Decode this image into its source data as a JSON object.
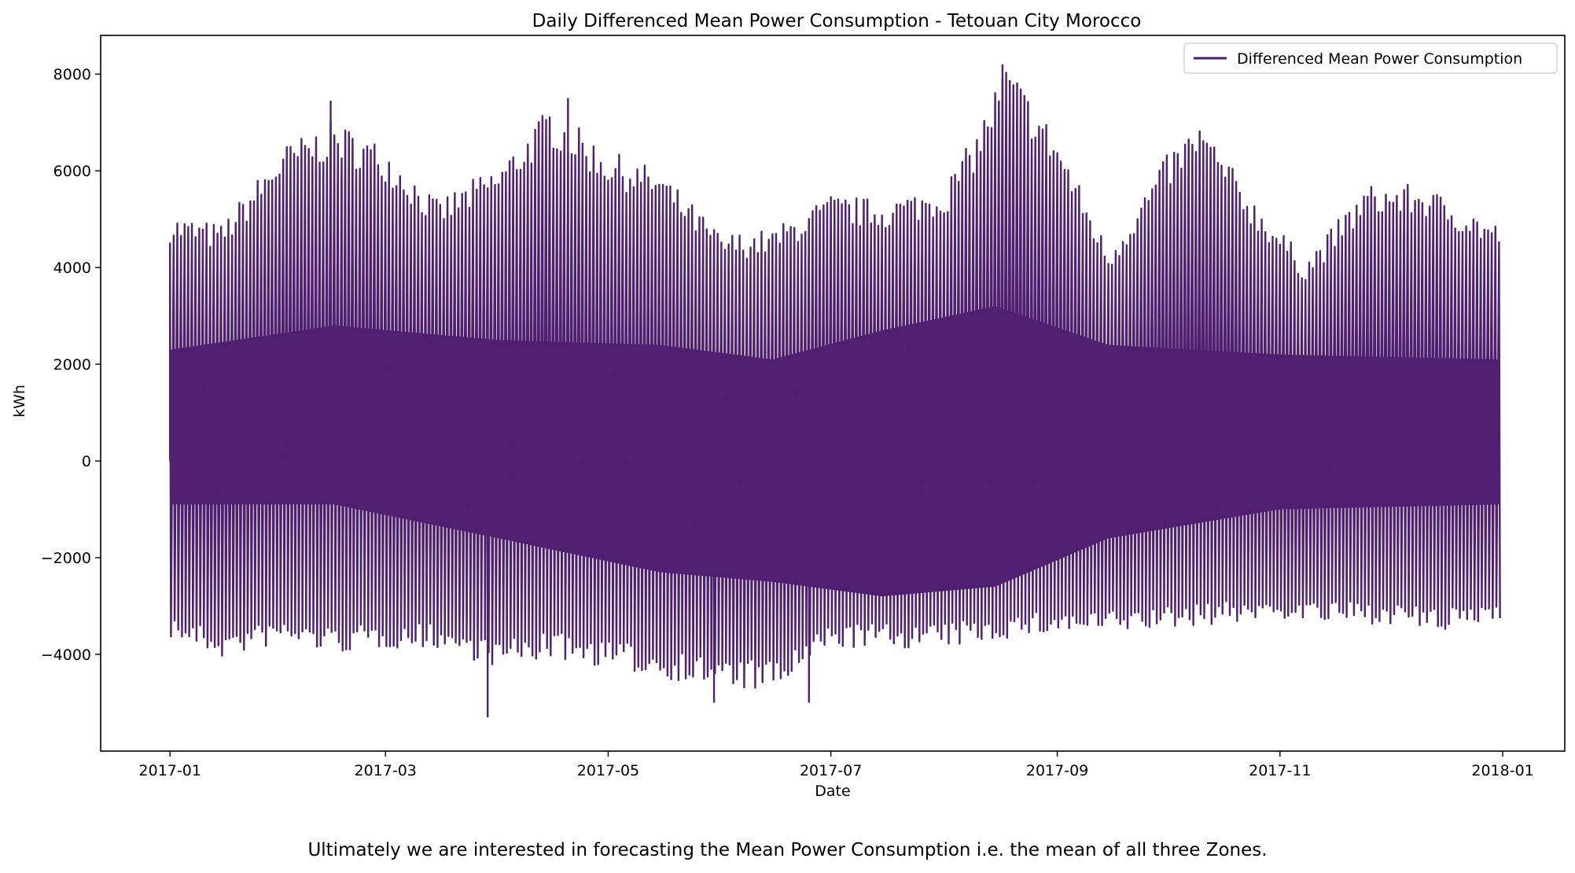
{
  "chart_data": {
    "type": "line",
    "title": "Daily Differenced Mean Power Consumption - Tetouan City Morocco",
    "xlabel": "Date",
    "ylabel": "kWh",
    "xlim": [
      "2016-12-13",
      "2018-01-18"
    ],
    "ylim": [
      -6000,
      8800
    ],
    "x_ticks": [
      "2017-01",
      "2017-03",
      "2017-05",
      "2017-07",
      "2017-09",
      "2017-11",
      "2018-01"
    ],
    "y_ticks": [
      -4000,
      -2000,
      0,
      2000,
      4000,
      6000,
      8000
    ],
    "grid": false,
    "legend": {
      "position": "top-right",
      "entries": [
        "Differenced Mean Power Consumption"
      ]
    },
    "series": [
      {
        "name": "Differenced Mean Power Consumption",
        "color": "#4f1f70",
        "envelope_upper": [
          [
            "2017-01-01",
            5000
          ],
          [
            "2017-01-15",
            4800
          ],
          [
            "2017-02-01",
            6400
          ],
          [
            "2017-02-15",
            6900
          ],
          [
            "2017-03-01",
            6400
          ],
          [
            "2017-03-15",
            5300
          ],
          [
            "2017-04-01",
            6000
          ],
          [
            "2017-04-15",
            7200
          ],
          [
            "2017-05-01",
            6300
          ],
          [
            "2017-05-15",
            5900
          ],
          [
            "2017-06-01",
            4600
          ],
          [
            "2017-06-15",
            4700
          ],
          [
            "2017-07-01",
            5400
          ],
          [
            "2017-07-15",
            5300
          ],
          [
            "2017-08-01",
            5600
          ],
          [
            "2017-08-10",
            6700
          ],
          [
            "2017-08-18",
            8100
          ],
          [
            "2017-09-01",
            6600
          ],
          [
            "2017-09-15",
            4300
          ],
          [
            "2017-10-01",
            6200
          ],
          [
            "2017-10-10",
            6900
          ],
          [
            "2017-10-25",
            5300
          ],
          [
            "2017-11-08",
            4100
          ],
          [
            "2017-11-25",
            5600
          ],
          [
            "2017-12-10",
            5600
          ],
          [
            "2017-12-31",
            4800
          ]
        ],
        "envelope_lower": [
          [
            "2017-01-01",
            -3600
          ],
          [
            "2017-01-15",
            -4000
          ],
          [
            "2017-02-01",
            -3700
          ],
          [
            "2017-02-15",
            -3900
          ],
          [
            "2017-03-01",
            -3800
          ],
          [
            "2017-03-15",
            -3800
          ],
          [
            "2017-04-01",
            -4200
          ],
          [
            "2017-04-15",
            -4000
          ],
          [
            "2017-05-01",
            -4200
          ],
          [
            "2017-05-15",
            -4400
          ],
          [
            "2017-06-01",
            -4600
          ],
          [
            "2017-06-15",
            -4700
          ],
          [
            "2017-07-01",
            -3800
          ],
          [
            "2017-07-15",
            -3800
          ],
          [
            "2017-08-01",
            -3800
          ],
          [
            "2017-08-18",
            -3600
          ],
          [
            "2017-09-01",
            -3500
          ],
          [
            "2017-09-15",
            -3500
          ],
          [
            "2017-10-01",
            -3400
          ],
          [
            "2017-10-15",
            -3300
          ],
          [
            "2017-11-01",
            -3200
          ],
          [
            "2017-11-15",
            -3300
          ],
          [
            "2017-12-01",
            -3300
          ],
          [
            "2017-12-15",
            -3500
          ],
          [
            "2017-12-31",
            -3200
          ]
        ],
        "core_upper": [
          [
            "2017-01-01",
            2300
          ],
          [
            "2017-02-15",
            2800
          ],
          [
            "2017-04-01",
            2500
          ],
          [
            "2017-05-15",
            2400
          ],
          [
            "2017-06-15",
            2100
          ],
          [
            "2017-07-15",
            2700
          ],
          [
            "2017-08-15",
            3200
          ],
          [
            "2017-09-15",
            2400
          ],
          [
            "2017-11-01",
            2200
          ],
          [
            "2017-12-31",
            2100
          ]
        ],
        "core_lower": [
          [
            "2017-01-01",
            -900
          ],
          [
            "2017-02-15",
            -900
          ],
          [
            "2017-04-01",
            -1600
          ],
          [
            "2017-05-15",
            -2300
          ],
          [
            "2017-06-15",
            -2500
          ],
          [
            "2017-07-15",
            -2800
          ],
          [
            "2017-08-15",
            -2600
          ],
          [
            "2017-09-15",
            -1600
          ],
          [
            "2017-11-01",
            -1000
          ],
          [
            "2017-12-31",
            -900
          ]
        ],
        "extremes": [
          [
            "2017-03-29",
            -5300
          ],
          [
            "2017-05-30",
            -5000
          ],
          [
            "2017-06-25",
            -5000
          ],
          [
            "2017-08-17",
            8200
          ],
          [
            "2017-02-14",
            7450
          ],
          [
            "2017-04-20",
            7500
          ]
        ]
      }
    ]
  },
  "caption": "Ultimately we are interested in forecasting the Mean Power Consumption i.e. the mean of all three Zones."
}
